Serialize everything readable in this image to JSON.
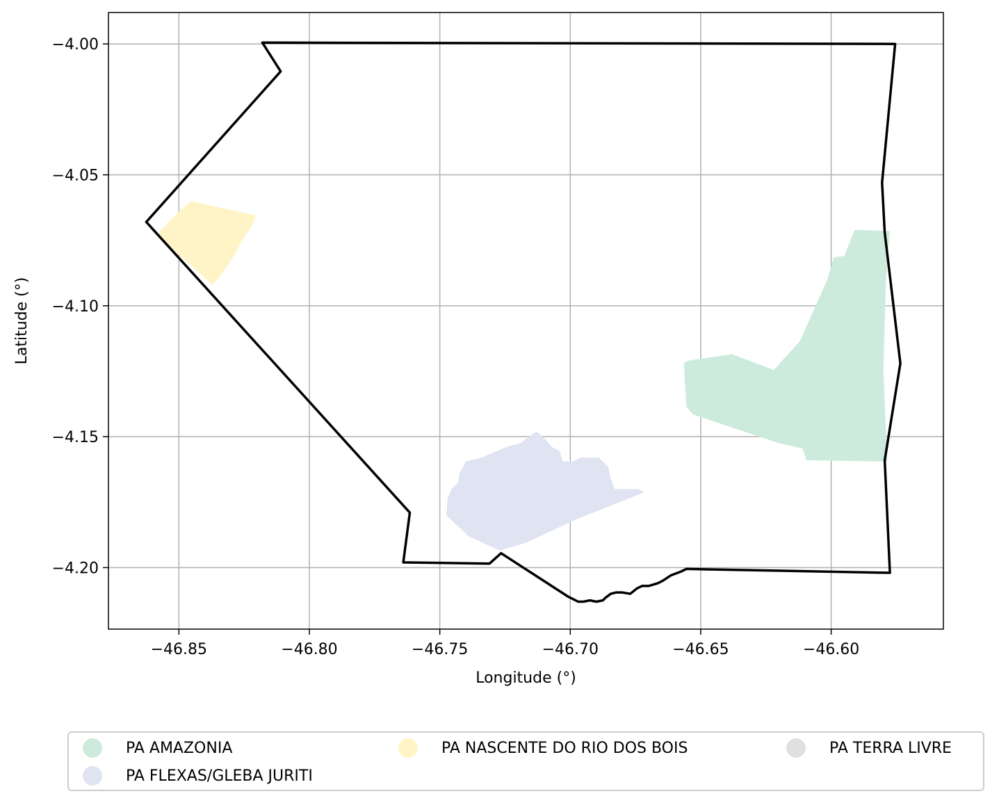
{
  "chart_data": {
    "type": "map",
    "xlabel": "Longitude (°)",
    "ylabel": "Latitude (°)",
    "xlim": [
      -46.877,
      -46.557
    ],
    "ylim": [
      -4.2235,
      -3.988
    ],
    "grid": true,
    "x_ticks": [
      -46.85,
      -46.8,
      -46.75,
      -46.7,
      -46.65,
      -46.6
    ],
    "x_tick_labels": [
      "−46.85",
      "−46.80",
      "−46.75",
      "−46.70",
      "−46.65",
      "−46.60"
    ],
    "y_ticks": [
      -4.0,
      -4.05,
      -4.1,
      -4.15,
      -4.2
    ],
    "y_tick_labels": [
      "−4.00",
      "−4.05",
      "−4.10",
      "−4.15",
      "−4.20"
    ],
    "boundary": {
      "color": "#000000",
      "coords": [
        [
          -46.818,
          -3.9995
        ],
        [
          -46.5755,
          -4.0
        ],
        [
          -46.5805,
          -4.053
        ],
        [
          -46.5795,
          -4.072
        ],
        [
          -46.5735,
          -4.122
        ],
        [
          -46.5795,
          -4.159
        ],
        [
          -46.5775,
          -4.202
        ],
        [
          -46.6555,
          -4.2005
        ],
        [
          -46.6575,
          -4.2015
        ],
        [
          -46.6615,
          -4.203
        ],
        [
          -46.6645,
          -4.205
        ],
        [
          -46.6665,
          -4.206
        ],
        [
          -46.67,
          -4.207
        ],
        [
          -46.6725,
          -4.207
        ],
        [
          -46.6745,
          -4.208
        ],
        [
          -46.677,
          -4.21
        ],
        [
          -46.68,
          -4.2095
        ],
        [
          -46.6825,
          -4.2095
        ],
        [
          -46.6845,
          -4.21
        ],
        [
          -46.6865,
          -4.2115
        ],
        [
          -46.6875,
          -4.2125
        ],
        [
          -46.69,
          -4.213
        ],
        [
          -46.6925,
          -4.2125
        ],
        [
          -46.695,
          -4.213
        ],
        [
          -46.697,
          -4.213
        ],
        [
          -46.699,
          -4.212
        ],
        [
          -46.701,
          -4.211
        ],
        [
          -46.7265,
          -4.1945
        ],
        [
          -46.731,
          -4.1985
        ],
        [
          -46.764,
          -4.198
        ],
        [
          -46.7615,
          -4.179
        ],
        [
          -46.8625,
          -4.068
        ],
        [
          -46.811,
          -4.0105
        ],
        [
          -46.818,
          -3.9995
        ]
      ]
    },
    "series": [
      {
        "name": "PA AMAZONIA",
        "color": "#cdebdc",
        "polygon": [
          [
            -46.638,
            -4.1185
          ],
          [
            -46.622,
            -4.1245
          ],
          [
            -46.612,
            -4.1135
          ],
          [
            -46.6015,
            -4.09
          ],
          [
            -46.599,
            -4.0815
          ],
          [
            -46.595,
            -4.081
          ],
          [
            -46.591,
            -4.071
          ],
          [
            -46.5775,
            -4.0715
          ],
          [
            -46.579,
            -4.09
          ],
          [
            -46.58,
            -4.125
          ],
          [
            -46.5785,
            -4.1595
          ],
          [
            -46.6095,
            -4.159
          ],
          [
            -46.611,
            -4.1545
          ],
          [
            -46.62,
            -4.1525
          ],
          [
            -46.644,
            -4.1445
          ],
          [
            -46.653,
            -4.1415
          ],
          [
            -46.6555,
            -4.1385
          ],
          [
            -46.6565,
            -4.122
          ],
          [
            -46.655,
            -4.121
          ]
        ]
      },
      {
        "name": "PA FLEXAS/GLEBA JURITI",
        "color": "#dfe3f2",
        "polygon": [
          [
            -46.713,
            -4.148
          ],
          [
            -46.7105,
            -4.15
          ],
          [
            -46.707,
            -4.154
          ],
          [
            -46.704,
            -4.1555
          ],
          [
            -46.703,
            -4.1595
          ],
          [
            -46.699,
            -4.1595
          ],
          [
            -46.696,
            -4.158
          ],
          [
            -46.689,
            -4.158
          ],
          [
            -46.6855,
            -4.1615
          ],
          [
            -46.6845,
            -4.166
          ],
          [
            -46.683,
            -4.17
          ],
          [
            -46.674,
            -4.17
          ],
          [
            -46.6715,
            -4.1712
          ],
          [
            -46.6975,
            -4.1815
          ],
          [
            -46.717,
            -4.1905
          ],
          [
            -46.727,
            -4.1935
          ],
          [
            -46.739,
            -4.188
          ],
          [
            -46.7475,
            -4.18
          ],
          [
            -46.747,
            -4.1735
          ],
          [
            -46.7455,
            -4.17
          ],
          [
            -46.743,
            -4.1675
          ],
          [
            -46.7425,
            -4.164
          ],
          [
            -46.74,
            -4.1595
          ],
          [
            -46.734,
            -4.158
          ],
          [
            -46.727,
            -4.155
          ],
          [
            -46.723,
            -4.1535
          ],
          [
            -46.719,
            -4.1525
          ],
          [
            -46.7165,
            -4.1505
          ]
        ]
      },
      {
        "name": "PA NASCENTE DO RIO DOS BOIS",
        "color": "#fff4c6",
        "polygon": [
          [
            -46.8455,
            -4.06
          ],
          [
            -46.8205,
            -4.0655
          ],
          [
            -46.822,
            -4.0695
          ],
          [
            -46.8255,
            -4.0745
          ],
          [
            -46.829,
            -4.081
          ],
          [
            -46.833,
            -4.087
          ],
          [
            -46.837,
            -4.092
          ],
          [
            -46.8585,
            -4.073
          ],
          [
            -46.853,
            -4.067
          ],
          [
            -46.849,
            -4.063
          ]
        ]
      },
      {
        "name": "PA TERRA LIVRE",
        "color": "#e0e0e0",
        "polygon": []
      }
    ],
    "legend": {
      "placement": "below",
      "columns": 3,
      "entries": [
        "PA AMAZONIA",
        "PA FLEXAS/GLEBA JURITI",
        "PA NASCENTE DO RIO DOS BOIS",
        "PA TERRA LIVRE"
      ]
    }
  }
}
